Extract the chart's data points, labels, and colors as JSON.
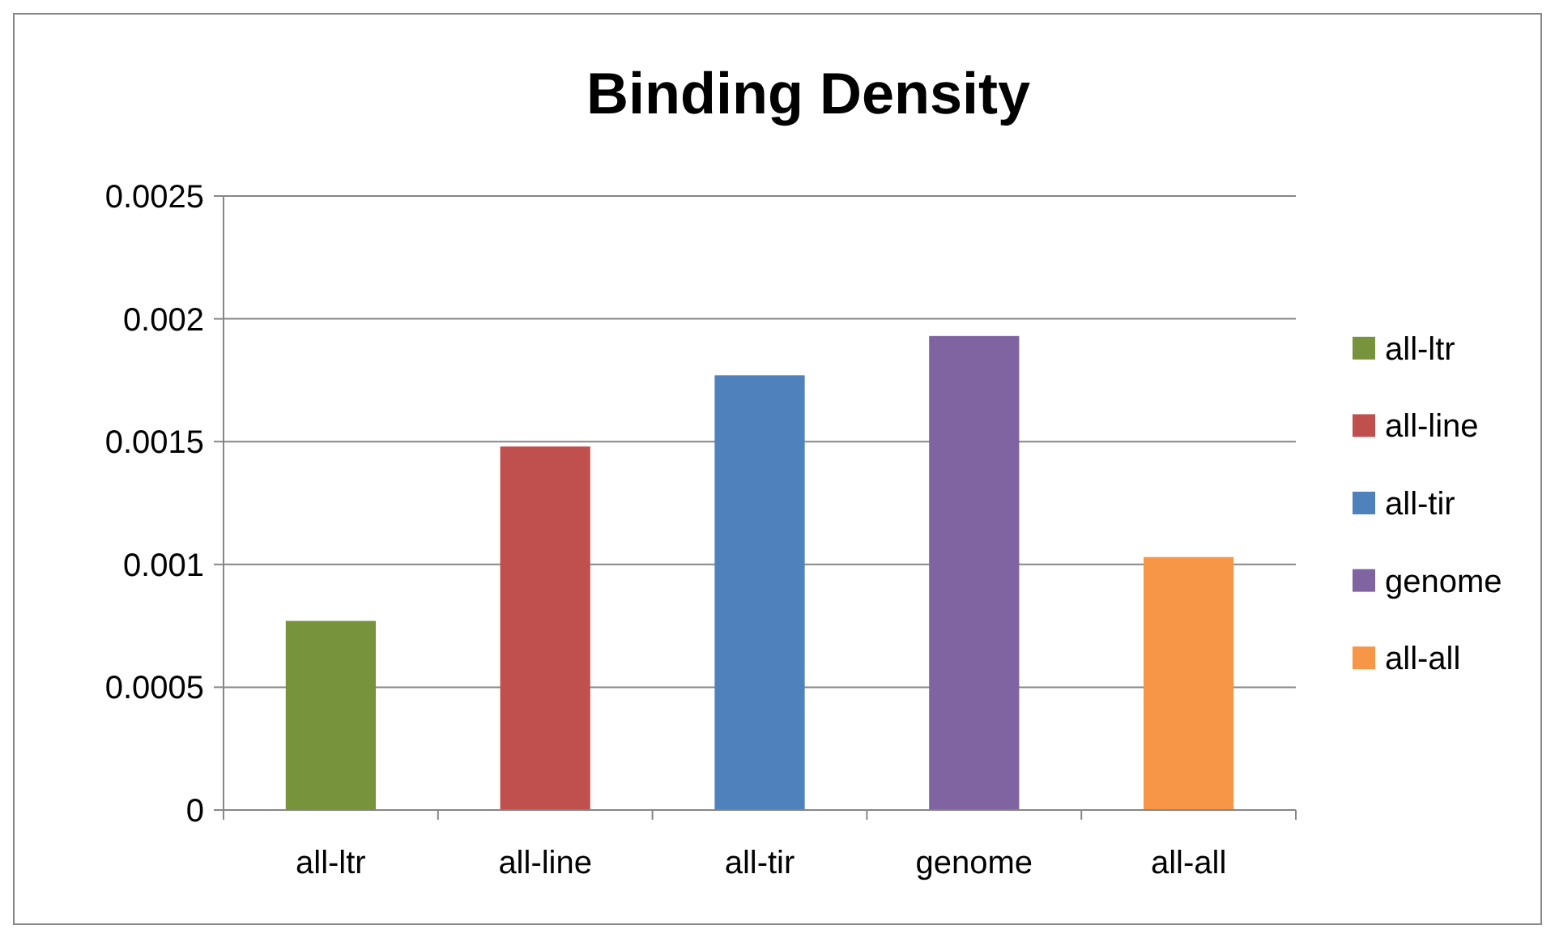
{
  "chart_data": {
    "type": "bar",
    "title": "Binding Density",
    "categories": [
      "all-ltr",
      "all-line",
      "all-tir",
      "genome",
      "all-all"
    ],
    "series": [
      {
        "name": "all-ltr",
        "color": "#77933c",
        "values": [
          0.00077,
          null,
          null,
          null,
          null
        ]
      },
      {
        "name": "all-line",
        "color": "#c0504d",
        "values": [
          null,
          0.00148,
          null,
          null,
          null
        ]
      },
      {
        "name": "all-tir",
        "color": "#4f81bd",
        "values": [
          null,
          null,
          0.00177,
          null,
          null
        ]
      },
      {
        "name": "genome",
        "color": "#8064a2",
        "values": [
          null,
          null,
          null,
          0.00193,
          null
        ]
      },
      {
        "name": "all-all",
        "color": "#f79646",
        "values": [
          null,
          null,
          null,
          null,
          0.00103
        ]
      }
    ],
    "ylim": [
      0,
      0.0025
    ],
    "yticks": [
      0,
      0.0005,
      0.001,
      0.0015,
      0.002,
      0.0025
    ],
    "grid": "y",
    "legend": "right"
  }
}
